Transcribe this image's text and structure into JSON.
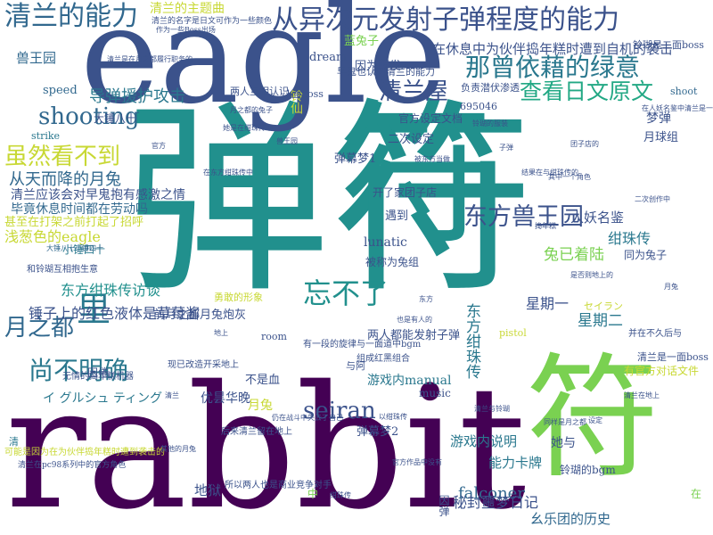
{
  "title": "清兰 word cloud",
  "palette": {
    "dark_purple": "#440154",
    "indigo": "#3b528b",
    "teal": "#21908d",
    "blue": "#31688e",
    "green": "#5ec962",
    "lime": "#addc30",
    "yellow": "#c8d834"
  },
  "words": [
    {
      "id": "danfu",
      "text": "弹符",
      "color": "#21908d",
      "weight": 10
    },
    {
      "id": "rabbit",
      "text": "rabbit",
      "color": "#440154",
      "weight": 10
    },
    {
      "id": "eagle",
      "text": "eagle",
      "color": "#3b528b",
      "weight": 9
    },
    {
      "id": "fu-right",
      "text": "符",
      "color": "#7ad151",
      "weight": 9
    },
    {
      "id": "fu-mid",
      "text": "符",
      "color": "#21908d",
      "weight": 8
    },
    {
      "id": "ability-long",
      "text": "从异次元发射子弹程度的能力",
      "color": "#3b528b",
      "weight": 6
    },
    {
      "id": "qinglan-ability",
      "text": "清兰的能力",
      "color": "#31688e",
      "weight": 5
    },
    {
      "id": "green-intent",
      "text": "那曾依藉的绿意",
      "color": "#2a788e",
      "weight": 5
    },
    {
      "id": "japanese-original",
      "text": "查看日文原文",
      "color": "#22a884",
      "weight": 5
    },
    {
      "id": "qinglan-house",
      "text": "清兰屋",
      "color": "#3b528b",
      "weight": 5
    },
    {
      "id": "shooting",
      "text": "shooting",
      "color": "#31688e",
      "weight": 5
    },
    {
      "id": "not-visible",
      "text": "虽然看不到",
      "color": "#c8d834",
      "weight": 4
    },
    {
      "id": "east-beast",
      "text": "东方兽王园",
      "color": "#3b528b",
      "weight": 5
    },
    {
      "id": "cannot-forget",
      "text": "忘不了",
      "color": "#21908d",
      "weight": 5
    },
    {
      "id": "moon-city",
      "text": "月之都",
      "color": "#31688e",
      "weight": 4
    },
    {
      "id": "still-unclear",
      "text": "尚不明确",
      "color": "#2a788e",
      "weight": 4
    },
    {
      "id": "li",
      "text": "里",
      "color": "#2a788e",
      "weight": 5
    },
    {
      "id": "seiran",
      "text": "seiran",
      "color": "#3b528b",
      "weight": 4
    },
    {
      "id": "falconer",
      "text": "falconer",
      "color": "#31688e",
      "weight": 3
    },
    {
      "id": "missile",
      "text": "导弹援护攻击",
      "color": "#2a788e",
      "weight": 3
    },
    {
      "id": "qinglan-theme",
      "text": "清兰的主题曲",
      "color": "#c8d834",
      "weight": 3
    },
    {
      "id": "rest-attack",
      "text": "在休息中为伙伴捣年糕时遭到自机的袭击",
      "color": "#3b528b",
      "weight": 3
    },
    {
      "id": "beast-garden",
      "text": "兽王园",
      "color": "#31688e",
      "weight": 2
    },
    {
      "id": "as-blue",
      "text": "因为蓝发",
      "color": "#3b528b",
      "weight": 2
    },
    {
      "id": "dream",
      "text": "dream",
      "color": "#3b528b",
      "weight": 2
    },
    {
      "id": "rabbit-fell",
      "text": "从天而降的月兔",
      "color": "#31688e",
      "weight": 3
    },
    {
      "id": "qinglan-thanks",
      "text": "清兰应该会对早鬼抱有感激之情",
      "color": "#3b528b",
      "weight": 2
    },
    {
      "id": "busy-rest",
      "text": "毕竟休息时间都在劳动吗",
      "color": "#31688e",
      "weight": 2
    },
    {
      "id": "apologize",
      "text": "甚至在打架之前打起了招呼",
      "color": "#c8d834",
      "weight": 2
    },
    {
      "id": "pale-eagle",
      "text": "浅葱色的eagle",
      "color": "#c8d834",
      "weight": 3
    },
    {
      "id": "gensokyo-visit",
      "text": "东方绀珠传访谈",
      "color": "#21908d",
      "weight": 3
    },
    {
      "id": "hammer",
      "text": "锤子上的红色液体是草莓酱",
      "color": "#3b528b",
      "weight": 3
    },
    {
      "id": "hammer-sub",
      "text": "小锤四十",
      "color": "#2a788e",
      "weight": 2
    },
    {
      "id": "lunatic",
      "text": "lunatic",
      "color": "#3b528b",
      "weight": 2
    },
    {
      "id": "kanji-keikaku",
      "text": "人妖名鉴",
      "color": "#3b528b",
      "weight": 2
    },
    {
      "id": "rabbit-landing",
      "text": "兔已着陆",
      "color": "#7ad151",
      "weight": 3
    },
    {
      "id": "kanjuden",
      "text": "绀珠传",
      "color": "#2a788e",
      "weight": 3
    },
    {
      "id": "dreamer",
      "text": "梦弹",
      "color": "#3b528b",
      "weight": 2
    },
    {
      "id": "moon-tsukitoo",
      "text": "月球组",
      "color": "#3b528b",
      "weight": 2
    },
    {
      "id": "star-2",
      "text": "星期二",
      "color": "#2a788e",
      "weight": 3
    },
    {
      "id": "star-1",
      "text": "星期一",
      "color": "#3b528b",
      "weight": 3
    },
    {
      "id": "gensokyo-manual",
      "text": "游戏内manual",
      "color": "#2a788e",
      "weight": 2
    },
    {
      "id": "kanjuden-v",
      "text": "东方绀珠传",
      "color": "#2a788e",
      "weight": 3
    },
    {
      "id": "tsuki-usagi",
      "text": "月兔",
      "color": "#c8d834",
      "weight": 2
    },
    {
      "id": "music",
      "text": "music",
      "color": "#3b528b",
      "weight": 2
    },
    {
      "id": "game-desc",
      "text": "游戏内说明",
      "color": "#2a788e",
      "weight": 2
    },
    {
      "id": "card-ability",
      "text": "能力卡牌",
      "color": "#2a788e",
      "weight": 2
    },
    {
      "id": "sealed-diary",
      "text": "秘封噩梦日记",
      "color": "#3b528b",
      "weight": 3
    },
    {
      "id": "music-history",
      "text": "幺乐团的历史",
      "color": "#31688e",
      "weight": 2
    },
    {
      "id": "hell",
      "text": "地狱",
      "color": "#3b528b",
      "weight": 2
    },
    {
      "id": "yuin",
      "text": "优昙华晚",
      "color": "#3b528b",
      "weight": 2
    },
    {
      "id": "iguru",
      "text": "イ グルシュ  ティング",
      "color": "#2a788e",
      "weight": 2
    },
    {
      "id": "danmaku-2",
      "text": "弹幕梦2",
      "color": "#3b528b",
      "weight": 2
    },
    {
      "id": "danmaku-1",
      "text": "弹幕梦1",
      "color": "#3b528b",
      "weight": 2
    },
    {
      "id": "two-rabbits",
      "text": "两人都能发射子弹",
      "color": "#3b528b",
      "weight": 2
    },
    {
      "id": "speed",
      "text": "speed",
      "color": "#31688e",
      "weight": 2
    },
    {
      "id": "strike",
      "text": "strike",
      "color": "#2a788e",
      "weight": 1
    },
    {
      "id": "shoot",
      "text": "shoot",
      "color": "#31688e",
      "weight": 1
    },
    {
      "id": "room",
      "text": "room",
      "color": "#3b528b",
      "weight": 1
    },
    {
      "id": "num",
      "text": "695046",
      "color": "#3b528b",
      "weight": 1
    },
    {
      "id": "blue-rabbit",
      "text": "蓝兔子",
      "color": "#7ad151",
      "weight": 2
    },
    {
      "id": "big-hammer",
      "text": "大锤八十",
      "color": "#3b528b",
      "weight": 2
    },
    {
      "id": "same-rabbit",
      "text": "同为兔子",
      "color": "#3b528b",
      "weight": 2
    },
    {
      "id": "tenpura",
      "text": "被称为兔组",
      "color": "#3b528b",
      "weight": 2
    },
    {
      "id": "morning-attack",
      "text": "早鬼也认可清兰的能力",
      "color": "#3b528b",
      "weight": 2
    },
    {
      "id": "second-setting",
      "text": "二次设定",
      "color": "#3b528b",
      "weight": 2
    },
    {
      "id": "official-setting",
      "text": "官方设定文档",
      "color": "#3b528b",
      "weight": 2
    },
    {
      "id": "open-shop",
      "text": "开了家团子店",
      "color": "#3b528b",
      "weight": 2
    },
    {
      "id": "met",
      "text": "遇到",
      "color": "#3b528b",
      "weight": 2
    },
    {
      "id": "not-gone",
      "text": "不是血",
      "color": "#3b528b",
      "weight": 2
    },
    {
      "id": "brave",
      "text": "勇敢的形象",
      "color": "#c8d834",
      "weight": 1
    },
    {
      "id": "first-moon",
      "text": "前月之都月兔炮灰",
      "color": "#3b528b",
      "weight": 2
    },
    {
      "id": "sleepy",
      "text": "困倦",
      "color": "#3b528b",
      "weight": 2
    },
    {
      "id": "cheng",
      "text": "清",
      "color": "#2a788e",
      "weight": 1
    },
    {
      "id": "zhong",
      "text": "中",
      "color": "#7ad151",
      "weight": 1
    },
    {
      "id": "zai",
      "text": "在",
      "color": "#7ad151",
      "weight": 1
    },
    {
      "id": "yin-dan",
      "text": "因弹",
      "color": "#3b528b",
      "weight": 1
    },
    {
      "id": "ta-zhi",
      "text": "她与",
      "color": "#3b528b",
      "weight": 2
    },
    {
      "id": "ling-xian",
      "text": "铃仙",
      "color": "#c8d834",
      "weight": 2
    },
    {
      "id": "boss-1",
      "text": "1面boss",
      "color": "#3b528b",
      "weight": 1
    },
    {
      "id": "yue",
      "text": "与阿",
      "color": "#3b528b",
      "weight": 1
    },
    {
      "id": "saint",
      "text": "セイラン",
      "color": "#c8d834",
      "weight": 1
    },
    {
      "id": "pistol",
      "text": "pistol",
      "color": "#c8d834",
      "weight": 1
    },
    {
      "id": "fuqi",
      "text": "负责潜伏渗透",
      "color": "#3b528b",
      "weight": 1
    },
    {
      "id": "two-boss",
      "text": "两人互相认识",
      "color": "#3b528b",
      "weight": 1
    },
    {
      "id": "ringo-q",
      "text": "铃瑚是二面boss",
      "color": "#3b528b",
      "weight": 1
    },
    {
      "id": "game-info",
      "text": "有官方对话文件",
      "color": "#c8d834",
      "weight": 1
    },
    {
      "id": "boss-dream",
      "text": "清兰是一面boss",
      "color": "#3b528b",
      "weight": 1
    },
    {
      "id": "ever-ringo",
      "text": "铃瑚的bgm",
      "color": "#3b528b",
      "weight": 1
    },
    {
      "id": "later-ruin",
      "text": "并在不久后与",
      "color": "#3b528b",
      "weight": 1
    }
  ],
  "tiny_words": [
    "清兰的名字是日文可作为一些颜色",
    "可能是因为在为伙伴捣年糕时遭到袭击的",
    "清兰在pc98系列中的官方角色",
    "在人妖名鉴中清兰是一位月兔",
    "作为一些Boss出场",
    "在东方绀珠传中",
    "清兰是在月之都履行职务的",
    "大锤八十小锤四十",
    "无情的捣年糕机器",
    "现已改造开采地上",
    "后来清兰留在地上",
    "有一段的旋律与一面道中bgm",
    "组成红黑组合",
    "所以两人也是商业竞争对手",
    "仍在战斗中失去了自己",
    "以绀珠传",
    "清兰在地上",
    "和铃瑚互相抱生意",
    "结果在与绀珠传的",
    "是否则地上的",
    "也是有人的",
    "被东方当做",
    "她是在绀珠传中",
    "同样是月之都",
    "清兰与铃瑚",
    "其中一个角色",
    "其他的月兔",
    "官方作品中没有",
    "二次创作中",
    "月之都的兔子",
    "铃瑚的服装",
    "团子店的",
    "子弹",
    "清兰",
    "月兔",
    "捣年糕",
    "地上",
    "东方",
    "绀珠传",
    "兽王园",
    "官方",
    "设定"
  ]
}
